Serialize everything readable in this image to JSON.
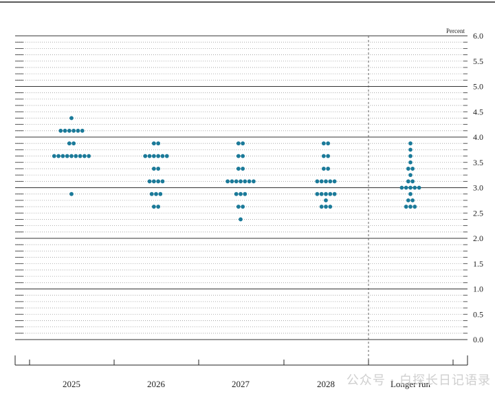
{
  "chart_data": {
    "type": "scatter",
    "unit": "Percent",
    "ylim": [
      0,
      6
    ],
    "y_ticks": [
      "6.0",
      "5.5",
      "5.0",
      "4.5",
      "4.0",
      "3.5",
      "3.0",
      "2.5",
      "2.0",
      "1.5",
      "1.0",
      "0.5",
      "0.0"
    ],
    "categories": [
      "2025",
      "2026",
      "2027",
      "2028",
      "Longer run"
    ],
    "dots": [
      {
        "category": "2025",
        "points": [
          {
            "y": 4.375,
            "count": 1
          },
          {
            "y": 4.125,
            "count": 6
          },
          {
            "y": 3.875,
            "count": 2
          },
          {
            "y": 3.625,
            "count": 9
          },
          {
            "y": 2.875,
            "count": 1
          }
        ]
      },
      {
        "category": "2026",
        "points": [
          {
            "y": 3.875,
            "count": 2
          },
          {
            "y": 3.625,
            "count": 6
          },
          {
            "y": 3.375,
            "count": 2
          },
          {
            "y": 3.125,
            "count": 4
          },
          {
            "y": 2.875,
            "count": 3
          },
          {
            "y": 2.625,
            "count": 2
          }
        ]
      },
      {
        "category": "2027",
        "points": [
          {
            "y": 3.875,
            "count": 2
          },
          {
            "y": 3.625,
            "count": 2
          },
          {
            "y": 3.375,
            "count": 2
          },
          {
            "y": 3.125,
            "count": 7
          },
          {
            "y": 2.875,
            "count": 3
          },
          {
            "y": 2.625,
            "count": 2
          },
          {
            "y": 2.375,
            "count": 1
          }
        ]
      },
      {
        "category": "2028",
        "points": [
          {
            "y": 3.875,
            "count": 2
          },
          {
            "y": 3.625,
            "count": 2
          },
          {
            "y": 3.375,
            "count": 2
          },
          {
            "y": 3.125,
            "count": 5
          },
          {
            "y": 2.875,
            "count": 5
          },
          {
            "y": 2.75,
            "count": 1
          },
          {
            "y": 2.625,
            "count": 3
          }
        ]
      },
      {
        "category": "Longer run",
        "points": [
          {
            "y": 3.875,
            "count": 1
          },
          {
            "y": 3.75,
            "count": 1
          },
          {
            "y": 3.625,
            "count": 1
          },
          {
            "y": 3.5,
            "count": 1
          },
          {
            "y": 3.375,
            "count": 2
          },
          {
            "y": 3.25,
            "count": 1
          },
          {
            "y": 3.125,
            "count": 2
          },
          {
            "y": 3.0,
            "count": 5
          },
          {
            "y": 2.875,
            "count": 1
          },
          {
            "y": 2.75,
            "count": 2
          },
          {
            "y": 2.625,
            "count": 3
          }
        ]
      }
    ],
    "grid": true,
    "dot_color": "#1b7a99"
  },
  "watermark": "公众号 · 白探长日记语录"
}
